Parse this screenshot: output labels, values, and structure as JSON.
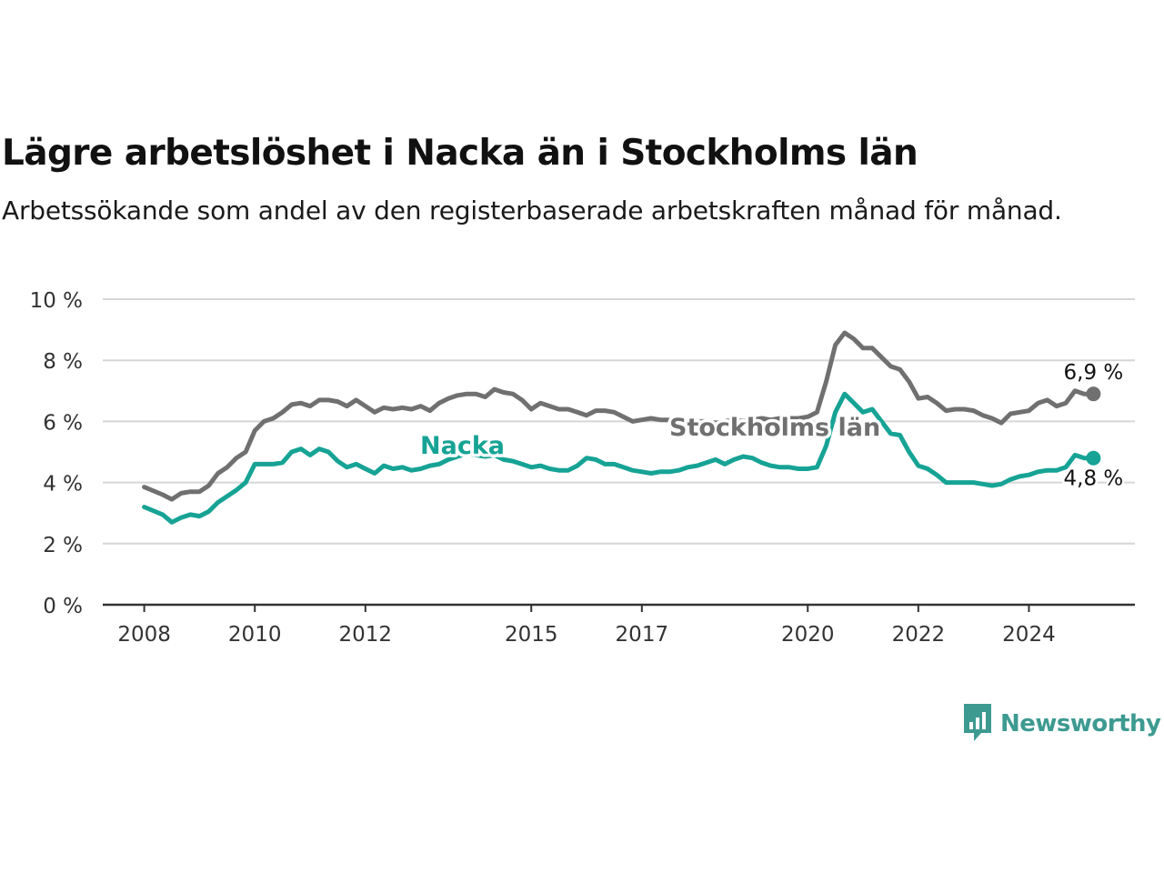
{
  "title": "Lägre arbetslöshet i Nacka än i Stockholms län",
  "subtitle": "Arbetssökande som andel av den registerbaserade arbetskraften månad för månad.",
  "brand": {
    "name": "Newsworthy",
    "icon": "newsworthy-logo-icon",
    "color": "#3d9a91"
  },
  "chart_data": {
    "type": "line",
    "title": "Lägre arbetslöshet i Nacka än i Stockholms län",
    "subtitle": "Arbetssökande som andel av den registerbaserade arbetskraften månad för månad.",
    "xlabel": "",
    "ylabel": "",
    "ylim": [
      0,
      10
    ],
    "xlim": [
      "2007-04",
      "2025-12"
    ],
    "y_ticks": [
      0,
      2,
      4,
      6,
      8,
      10
    ],
    "y_tick_labels": [
      "0 %",
      "2 %",
      "4 %",
      "6 %",
      "8 %",
      "10 %"
    ],
    "x_ticks": [
      "2008",
      "2010",
      "2012",
      "2015",
      "2017",
      "2020",
      "2022",
      "2024"
    ],
    "grid": true,
    "legend": "inline labels",
    "series": [
      {
        "name": "Stockholms län",
        "color": "#707070",
        "end_label": "6,9 %",
        "points": [
          [
            "2008-01",
            3.85
          ],
          [
            "2008-05",
            3.6
          ],
          [
            "2008-07",
            3.45
          ],
          [
            "2008-09",
            3.65
          ],
          [
            "2008-11",
            3.7
          ],
          [
            "2009-01",
            3.7
          ],
          [
            "2009-03",
            3.9
          ],
          [
            "2009-05",
            4.3
          ],
          [
            "2009-07",
            4.5
          ],
          [
            "2009-09",
            4.8
          ],
          [
            "2009-11",
            5.0
          ],
          [
            "2010-01",
            5.7
          ],
          [
            "2010-03",
            6.0
          ],
          [
            "2010-05",
            6.1
          ],
          [
            "2010-07",
            6.3
          ],
          [
            "2010-09",
            6.55
          ],
          [
            "2010-11",
            6.6
          ],
          [
            "2011-01",
            6.5
          ],
          [
            "2011-03",
            6.7
          ],
          [
            "2011-05",
            6.7
          ],
          [
            "2011-07",
            6.65
          ],
          [
            "2011-09",
            6.5
          ],
          [
            "2011-11",
            6.7
          ],
          [
            "2012-01",
            6.5
          ],
          [
            "2012-03",
            6.3
          ],
          [
            "2012-05",
            6.45
          ],
          [
            "2012-07",
            6.4
          ],
          [
            "2012-09",
            6.45
          ],
          [
            "2012-11",
            6.4
          ],
          [
            "2013-01",
            6.5
          ],
          [
            "2013-03",
            6.35
          ],
          [
            "2013-05",
            6.6
          ],
          [
            "2013-07",
            6.75
          ],
          [
            "2013-09",
            6.85
          ],
          [
            "2013-11",
            6.9
          ],
          [
            "2014-01",
            6.9
          ],
          [
            "2014-03",
            6.8
          ],
          [
            "2014-05",
            7.05
          ],
          [
            "2014-07",
            6.95
          ],
          [
            "2014-09",
            6.9
          ],
          [
            "2014-11",
            6.7
          ],
          [
            "2015-01",
            6.4
          ],
          [
            "2015-03",
            6.6
          ],
          [
            "2015-05",
            6.5
          ],
          [
            "2015-07",
            6.4
          ],
          [
            "2015-09",
            6.4
          ],
          [
            "2015-11",
            6.3
          ],
          [
            "2016-01",
            6.2
          ],
          [
            "2016-03",
            6.35
          ],
          [
            "2016-05",
            6.35
          ],
          [
            "2016-07",
            6.3
          ],
          [
            "2016-09",
            6.15
          ],
          [
            "2016-11",
            6.0
          ],
          [
            "2017-01",
            6.05
          ],
          [
            "2017-03",
            6.1
          ],
          [
            "2017-05",
            6.05
          ],
          [
            "2017-07",
            6.05
          ],
          [
            "2017-09",
            6.0
          ],
          [
            "2017-11",
            5.95
          ],
          [
            "2018-01",
            6.0
          ],
          [
            "2018-03",
            6.0
          ],
          [
            "2018-05",
            5.95
          ],
          [
            "2018-07",
            6.0
          ],
          [
            "2018-09",
            6.05
          ],
          [
            "2018-11",
            6.0
          ],
          [
            "2019-01",
            6.05
          ],
          [
            "2019-03",
            6.1
          ],
          [
            "2019-05",
            6.05
          ],
          [
            "2019-07",
            6.1
          ],
          [
            "2019-09",
            6.1
          ],
          [
            "2019-11",
            6.1
          ],
          [
            "2020-01",
            6.15
          ],
          [
            "2020-03",
            6.3
          ],
          [
            "2020-05",
            7.3
          ],
          [
            "2020-07",
            8.5
          ],
          [
            "2020-09",
            8.9
          ],
          [
            "2020-11",
            8.7
          ],
          [
            "2021-01",
            8.4
          ],
          [
            "2021-03",
            8.4
          ],
          [
            "2021-05",
            8.1
          ],
          [
            "2021-07",
            7.8
          ],
          [
            "2021-09",
            7.7
          ],
          [
            "2021-11",
            7.3
          ],
          [
            "2022-01",
            6.75
          ],
          [
            "2022-03",
            6.8
          ],
          [
            "2022-05",
            6.6
          ],
          [
            "2022-07",
            6.35
          ],
          [
            "2022-09",
            6.4
          ],
          [
            "2022-11",
            6.4
          ],
          [
            "2023-01",
            6.35
          ],
          [
            "2023-03",
            6.2
          ],
          [
            "2023-05",
            6.1
          ],
          [
            "2023-07",
            5.95
          ],
          [
            "2023-09",
            6.25
          ],
          [
            "2023-11",
            6.3
          ],
          [
            "2024-01",
            6.35
          ],
          [
            "2024-03",
            6.6
          ],
          [
            "2024-05",
            6.7
          ],
          [
            "2024-07",
            6.5
          ],
          [
            "2024-09",
            6.6
          ],
          [
            "2024-11",
            7.0
          ],
          [
            "2025-01",
            6.9
          ],
          [
            "2025-03",
            6.9
          ]
        ]
      },
      {
        "name": "Nacka",
        "color": "#16a395",
        "end_label": "4,8 %",
        "points": [
          [
            "2008-01",
            3.2
          ],
          [
            "2008-05",
            2.95
          ],
          [
            "2008-07",
            2.7
          ],
          [
            "2008-09",
            2.85
          ],
          [
            "2008-11",
            2.95
          ],
          [
            "2009-01",
            2.9
          ],
          [
            "2009-03",
            3.05
          ],
          [
            "2009-05",
            3.35
          ],
          [
            "2009-07",
            3.55
          ],
          [
            "2009-09",
            3.75
          ],
          [
            "2009-11",
            4.0
          ],
          [
            "2010-01",
            4.6
          ],
          [
            "2010-03",
            4.6
          ],
          [
            "2010-05",
            4.6
          ],
          [
            "2010-07",
            4.65
          ],
          [
            "2010-09",
            5.0
          ],
          [
            "2010-11",
            5.1
          ],
          [
            "2011-01",
            4.9
          ],
          [
            "2011-03",
            5.1
          ],
          [
            "2011-05",
            5.0
          ],
          [
            "2011-07",
            4.7
          ],
          [
            "2011-09",
            4.5
          ],
          [
            "2011-11",
            4.6
          ],
          [
            "2012-01",
            4.45
          ],
          [
            "2012-03",
            4.3
          ],
          [
            "2012-05",
            4.55
          ],
          [
            "2012-07",
            4.45
          ],
          [
            "2012-09",
            4.5
          ],
          [
            "2012-11",
            4.4
          ],
          [
            "2013-01",
            4.45
          ],
          [
            "2013-03",
            4.55
          ],
          [
            "2013-05",
            4.6
          ],
          [
            "2013-07",
            4.75
          ],
          [
            "2013-09",
            4.85
          ],
          [
            "2013-11",
            4.95
          ],
          [
            "2014-01",
            4.9
          ],
          [
            "2014-03",
            4.85
          ],
          [
            "2014-05",
            4.9
          ],
          [
            "2014-07",
            4.75
          ],
          [
            "2014-09",
            4.7
          ],
          [
            "2014-11",
            4.6
          ],
          [
            "2015-01",
            4.5
          ],
          [
            "2015-03",
            4.55
          ],
          [
            "2015-05",
            4.45
          ],
          [
            "2015-07",
            4.4
          ],
          [
            "2015-09",
            4.4
          ],
          [
            "2015-11",
            4.55
          ],
          [
            "2016-01",
            4.8
          ],
          [
            "2016-03",
            4.75
          ],
          [
            "2016-05",
            4.6
          ],
          [
            "2016-07",
            4.6
          ],
          [
            "2016-09",
            4.5
          ],
          [
            "2016-11",
            4.4
          ],
          [
            "2017-01",
            4.35
          ],
          [
            "2017-03",
            4.3
          ],
          [
            "2017-05",
            4.35
          ],
          [
            "2017-07",
            4.35
          ],
          [
            "2017-09",
            4.4
          ],
          [
            "2017-11",
            4.5
          ],
          [
            "2018-01",
            4.55
          ],
          [
            "2018-03",
            4.65
          ],
          [
            "2018-05",
            4.75
          ],
          [
            "2018-07",
            4.6
          ],
          [
            "2018-09",
            4.75
          ],
          [
            "2018-11",
            4.85
          ],
          [
            "2019-01",
            4.8
          ],
          [
            "2019-03",
            4.65
          ],
          [
            "2019-05",
            4.55
          ],
          [
            "2019-07",
            4.5
          ],
          [
            "2019-09",
            4.5
          ],
          [
            "2019-11",
            4.45
          ],
          [
            "2020-01",
            4.45
          ],
          [
            "2020-03",
            4.5
          ],
          [
            "2020-05",
            5.2
          ],
          [
            "2020-07",
            6.3
          ],
          [
            "2020-09",
            6.9
          ],
          [
            "2020-11",
            6.6
          ],
          [
            "2021-01",
            6.3
          ],
          [
            "2021-03",
            6.4
          ],
          [
            "2021-05",
            6.0
          ],
          [
            "2021-07",
            5.6
          ],
          [
            "2021-09",
            5.55
          ],
          [
            "2021-11",
            5.0
          ],
          [
            "2022-01",
            4.55
          ],
          [
            "2022-03",
            4.45
          ],
          [
            "2022-05",
            4.25
          ],
          [
            "2022-07",
            4.0
          ],
          [
            "2022-09",
            4.0
          ],
          [
            "2022-11",
            4.0
          ],
          [
            "2023-01",
            4.0
          ],
          [
            "2023-03",
            3.95
          ],
          [
            "2023-05",
            3.9
          ],
          [
            "2023-07",
            3.95
          ],
          [
            "2023-09",
            4.1
          ],
          [
            "2023-11",
            4.2
          ],
          [
            "2024-01",
            4.25
          ],
          [
            "2024-03",
            4.35
          ],
          [
            "2024-05",
            4.4
          ],
          [
            "2024-07",
            4.4
          ],
          [
            "2024-09",
            4.5
          ],
          [
            "2024-11",
            4.9
          ],
          [
            "2025-01",
            4.8
          ],
          [
            "2025-03",
            4.8
          ]
        ]
      }
    ]
  }
}
